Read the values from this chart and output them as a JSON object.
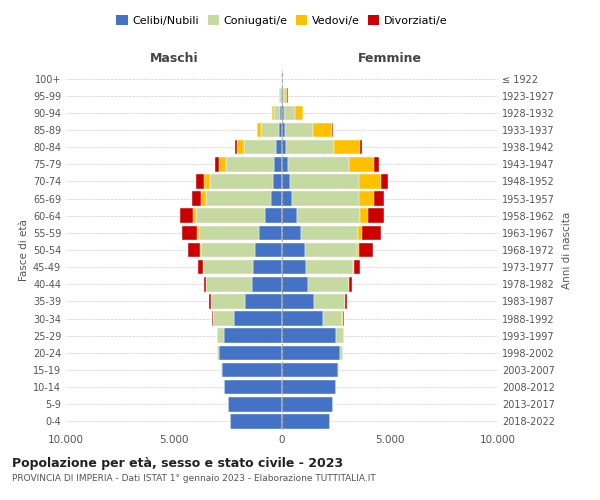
{
  "age_groups": [
    "0-4",
    "5-9",
    "10-14",
    "15-19",
    "20-24",
    "25-29",
    "30-34",
    "35-39",
    "40-44",
    "45-49",
    "50-54",
    "55-59",
    "60-64",
    "65-69",
    "70-74",
    "75-79",
    "80-84",
    "85-89",
    "90-94",
    "95-99",
    "100+"
  ],
  "birth_years": [
    "2018-2022",
    "2013-2017",
    "2008-2012",
    "2003-2007",
    "1998-2002",
    "1993-1997",
    "1988-1992",
    "1983-1987",
    "1978-1982",
    "1973-1977",
    "1968-1972",
    "1963-1967",
    "1958-1962",
    "1953-1957",
    "1948-1952",
    "1943-1947",
    "1938-1942",
    "1933-1937",
    "1928-1932",
    "1923-1927",
    "≤ 1922"
  ],
  "male": {
    "celibe": [
      2400,
      2500,
      2700,
      2800,
      2900,
      2700,
      2200,
      1700,
      1400,
      1350,
      1250,
      1050,
      780,
      520,
      430,
      370,
      280,
      150,
      80,
      50,
      20
    ],
    "coniugato": [
      2,
      2,
      5,
      20,
      100,
      300,
      1000,
      1600,
      2100,
      2300,
      2500,
      2800,
      3200,
      3000,
      2900,
      2200,
      1500,
      800,
      300,
      80,
      20
    ],
    "vedovo": [
      0,
      0,
      0,
      1,
      2,
      2,
      3,
      5,
      10,
      30,
      50,
      80,
      150,
      250,
      300,
      350,
      300,
      200,
      80,
      20,
      5
    ],
    "divorziato": [
      0,
      0,
      0,
      2,
      5,
      20,
      50,
      80,
      100,
      200,
      550,
      700,
      600,
      400,
      350,
      200,
      80,
      30,
      10,
      5,
      0
    ]
  },
  "female": {
    "nubile": [
      2200,
      2350,
      2500,
      2600,
      2700,
      2500,
      1900,
      1500,
      1200,
      1100,
      1050,
      900,
      700,
      480,
      380,
      280,
      200,
      120,
      80,
      50,
      20
    ],
    "coniugata": [
      2,
      3,
      8,
      25,
      120,
      350,
      900,
      1400,
      1900,
      2200,
      2400,
      2600,
      2900,
      3100,
      3200,
      2800,
      2200,
      1300,
      500,
      100,
      20
    ],
    "vedova": [
      0,
      0,
      0,
      1,
      2,
      3,
      5,
      10,
      20,
      50,
      100,
      200,
      400,
      700,
      1000,
      1200,
      1200,
      900,
      400,
      100,
      20
    ],
    "divorziata": [
      0,
      0,
      0,
      2,
      5,
      20,
      50,
      80,
      120,
      280,
      650,
      900,
      700,
      450,
      350,
      200,
      100,
      50,
      10,
      5,
      0
    ]
  },
  "colors": {
    "celibe": "#4472c4",
    "coniugato": "#c5d9a0",
    "vedovo": "#ffc000",
    "divorziato": "#cc0000"
  },
  "legend_labels": [
    "Celibi/Nubili",
    "Coniugati/e",
    "Vedovi/e",
    "Divorziati/e"
  ],
  "xlim": 10000,
  "xticks": [
    -10000,
    -5000,
    0,
    5000,
    10000
  ],
  "xtick_labels": [
    "10.000",
    "5.000",
    "0",
    "5.000",
    "10.000"
  ],
  "title_main": "Popolazione per età, sesso e stato civile - 2023",
  "title_sub": "PROVINCIA DI IMPERIA - Dati ISTAT 1° gennaio 2023 - Elaborazione TUTTITALIA.IT",
  "ylabel_left": "Fasce di età",
  "ylabel_right": "Anni di nascita",
  "maschi_label": "Maschi",
  "femmine_label": "Femmine",
  "bg_color": "#ffffff",
  "grid_color": "#cccccc"
}
